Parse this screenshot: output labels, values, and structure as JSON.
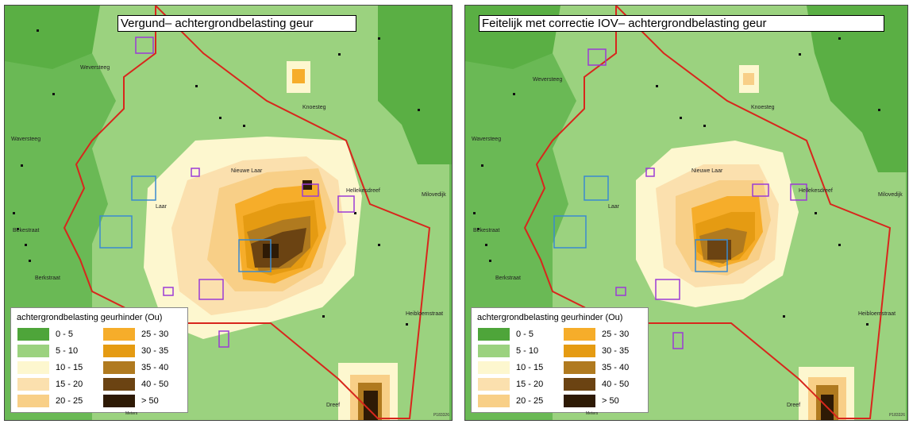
{
  "panels": [
    {
      "id": "left",
      "title": "Vergund– achtergrondbelasting geur"
    },
    {
      "id": "right",
      "title": "Feitelijk met correctie IOV– achtergrondbelasting geur"
    }
  ],
  "legend": {
    "title": "achtergrondbelasting geurhinder (Ou)",
    "classes": [
      {
        "label": "0 - 5",
        "color": "#4ea53a"
      },
      {
        "label": "5 - 10",
        "color": "#9bd27f"
      },
      {
        "label": "10 - 15",
        "color": "#fdf7cf"
      },
      {
        "label": "15 - 20",
        "color": "#fbe0ae"
      },
      {
        "label": "20 - 25",
        "color": "#f8cf87"
      },
      {
        "label": "25 - 30",
        "color": "#f6ad2a"
      },
      {
        "label": "30 - 35",
        "color": "#e59b12"
      },
      {
        "label": "35 - 40",
        "color": "#b07a1f"
      },
      {
        "label": "40 - 50",
        "color": "#6b4312"
      },
      {
        "label": "> 50",
        "color": "#2e1a05"
      }
    ]
  },
  "road_labels": {
    "left": [
      "Nieuwe Laar",
      "Knoesteg",
      "Weversteeg",
      "Waversteeg",
      "Hellekesdreef",
      "Milovedijk",
      "Heibloemstraat",
      "Dreef",
      "Bekestraat",
      "Berkstraat",
      "Laar"
    ],
    "right": [
      "Nieuwe Laar",
      "Knoesteg",
      "Weversteeg",
      "Waversteeg",
      "Hellekesdreef",
      "Milovedijk",
      "Heibloemstraat",
      "Dreef",
      "Bekestraat",
      "Berkstraat",
      "Laar"
    ]
  },
  "scalebar_label": "Meters",
  "map_code": "P183326"
}
